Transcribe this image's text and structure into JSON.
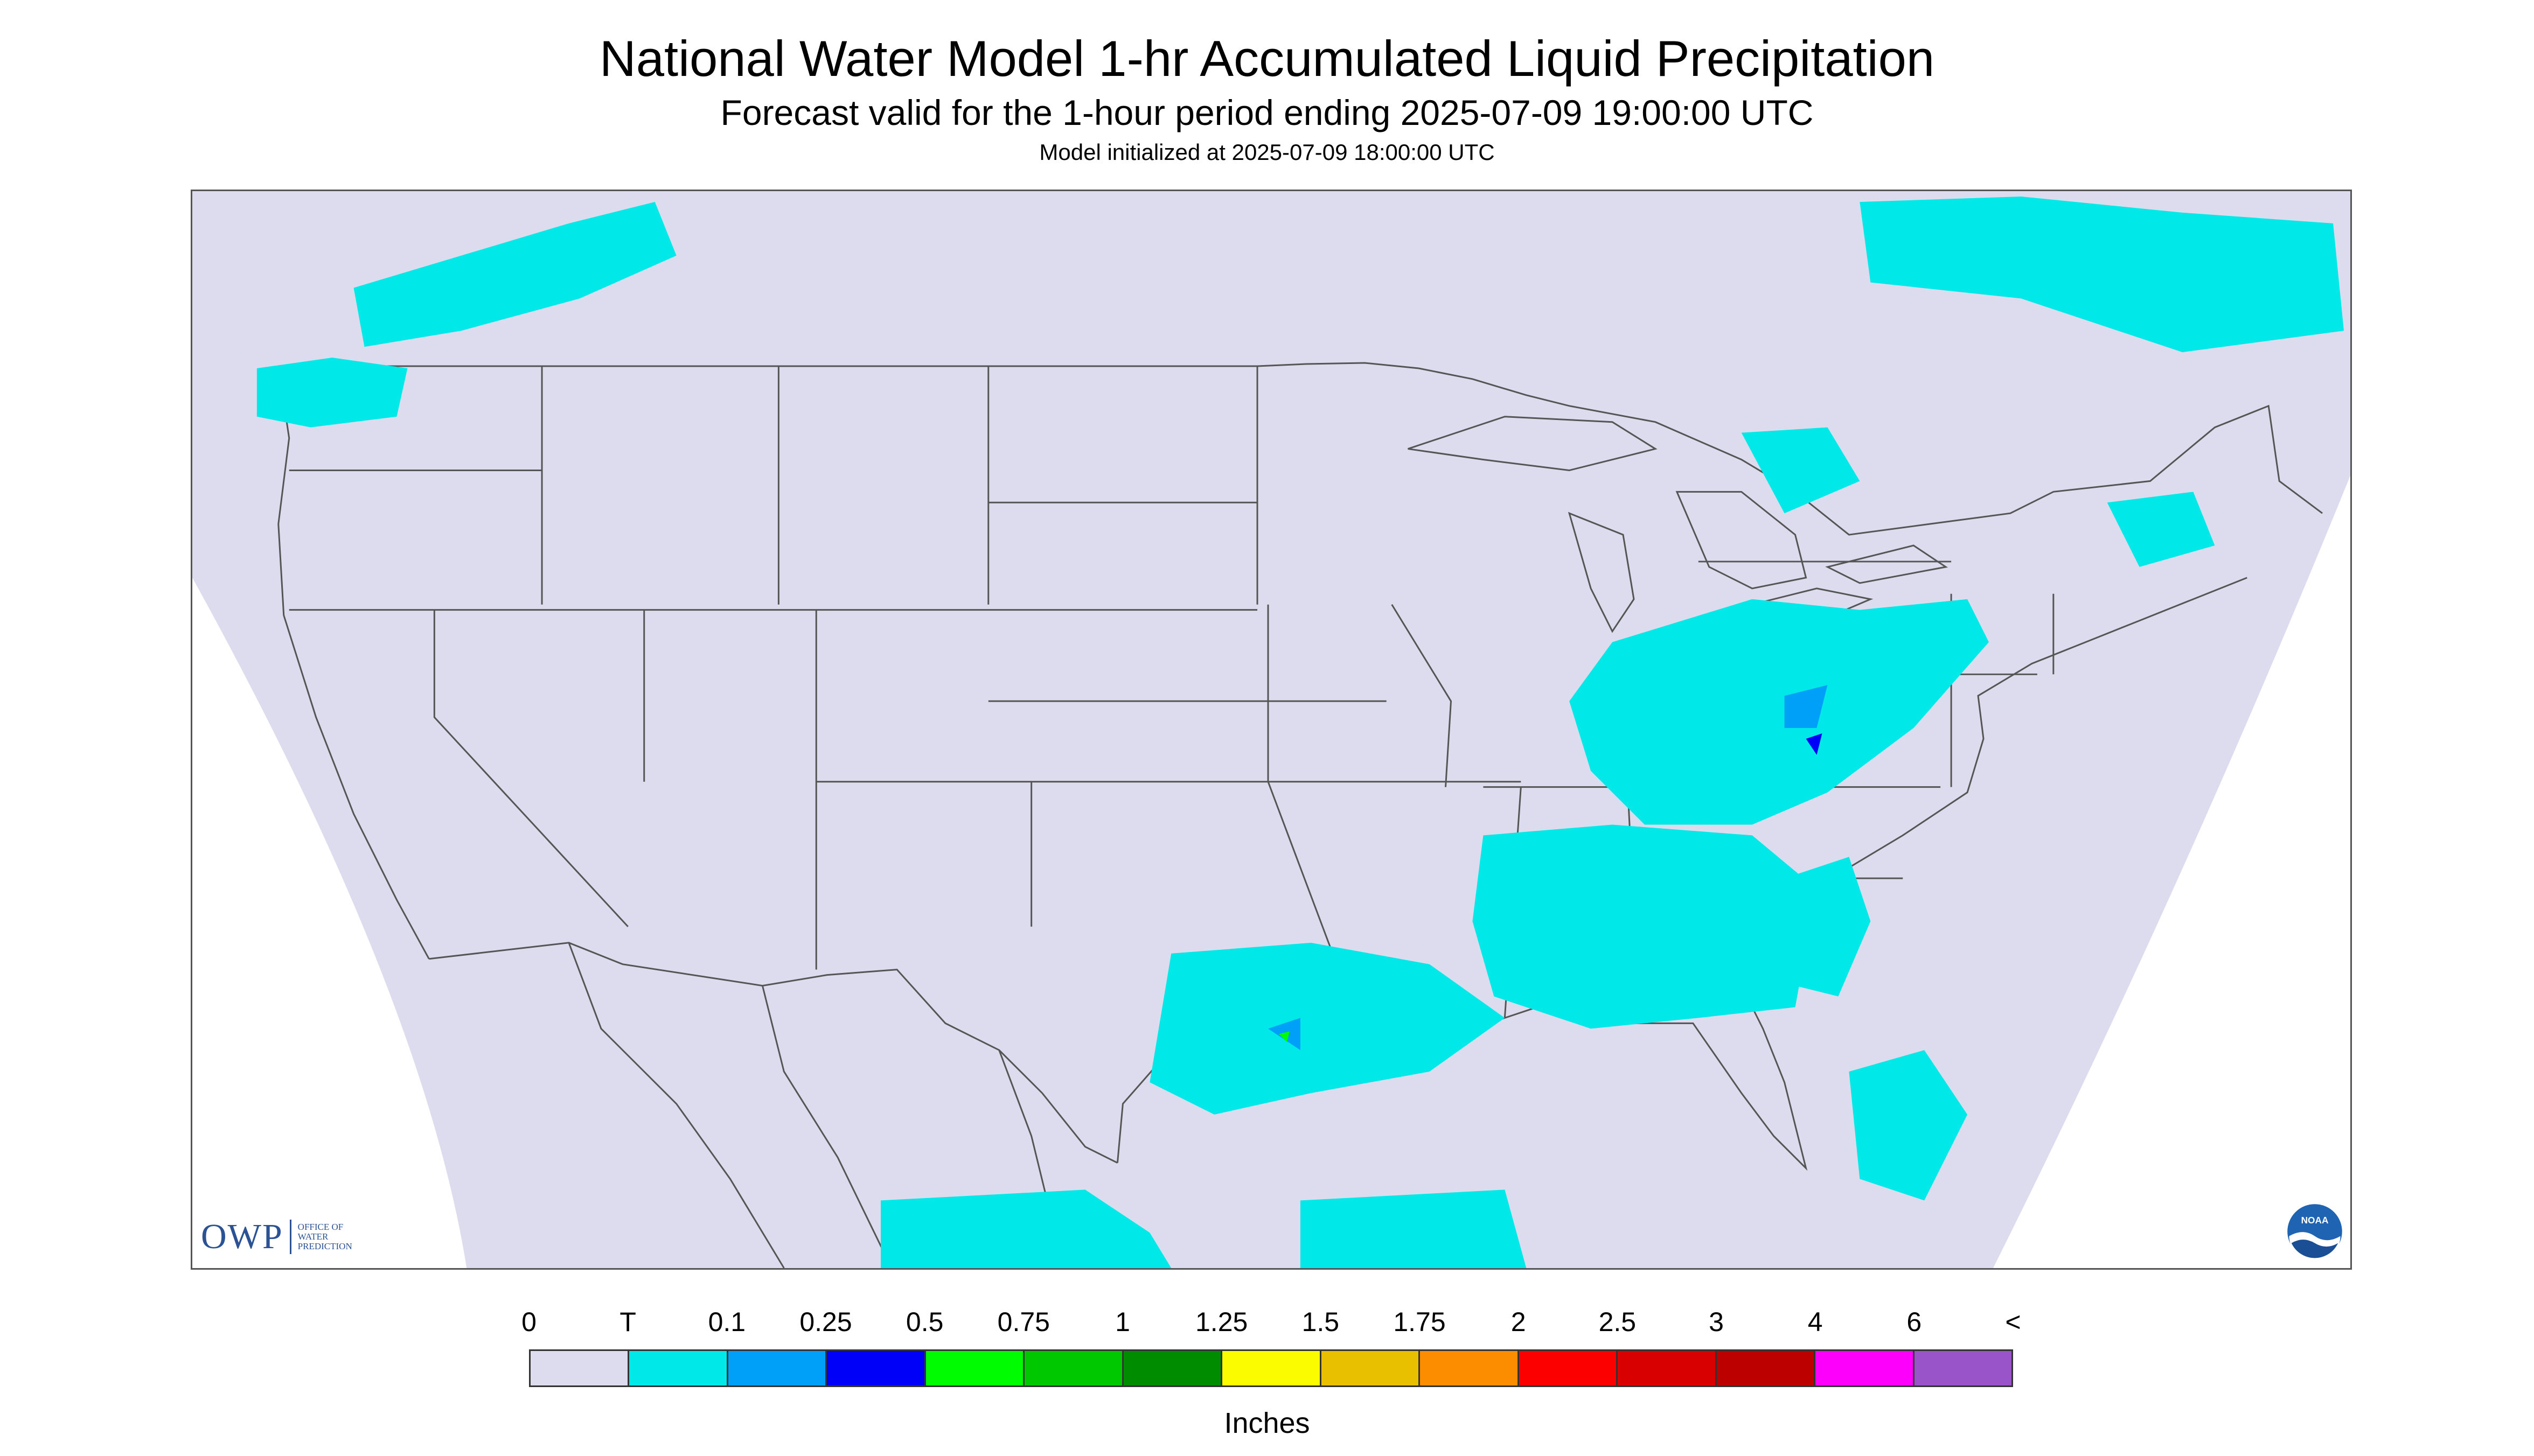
{
  "title": "National Water Model 1-hr Accumulated Liquid Precipitation",
  "subtitle": "Forecast valid for the 1-hour period ending 2025-07-09 19:00:00 UTC",
  "init": "Model initialized at 2025-07-09 18:00:00 UTC",
  "map": {
    "background_color": "#dcdcee",
    "outside_color": "#ffffff",
    "line_color": "#555555"
  },
  "logos": {
    "owp_mark": "OWP",
    "owp_text": [
      "OFFICE OF",
      "WATER",
      "PREDICTION"
    ],
    "noaa_text": "NOAA"
  },
  "legend": {
    "labels": [
      "0",
      "T",
      "0.1",
      "0.25",
      "0.5",
      "0.75",
      "1",
      "1.25",
      "1.5",
      "1.75",
      "2",
      "2.5",
      "3",
      "4",
      "6",
      "<"
    ],
    "colors": [
      "#dcdcee",
      "#00e8e8",
      "#00a0f8",
      "#0000f8",
      "#00fc00",
      "#00c800",
      "#008c00",
      "#fcfc00",
      "#e8c000",
      "#fc8c00",
      "#fc0000",
      "#d80000",
      "#bc0000",
      "#fc00fc",
      "#9854c8"
    ],
    "units": "Inches"
  }
}
